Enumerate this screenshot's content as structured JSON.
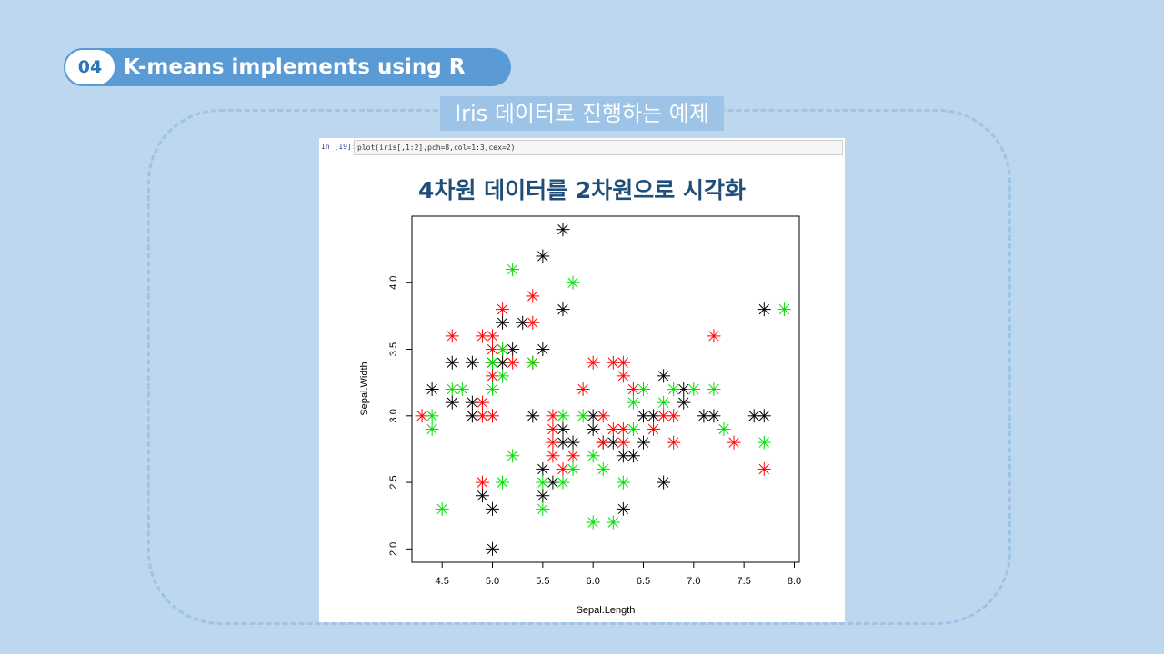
{
  "header": {
    "section_number": "04",
    "section_title": "K-means implements using R"
  },
  "subtitle": "Iris 데이터로 진행하는 예제",
  "notebook": {
    "prompt": "In [19]:",
    "code": "plot(iris[,1:2],pch=8,col=1:3,cex=2)"
  },
  "chart_data": {
    "type": "scatter",
    "title": "4차원 데이터를 2차원으로 시각화",
    "xlabel": "Sepal.Length",
    "ylabel": "Sepal.Width",
    "xlim": [
      4.2,
      8.05
    ],
    "ylim": [
      1.9,
      4.5
    ],
    "xticks": [
      4.5,
      5.0,
      5.5,
      6.0,
      6.5,
      7.0,
      7.5,
      8.0
    ],
    "yticks": [
      2.0,
      2.5,
      3.0,
      3.5,
      4.0
    ],
    "xtick_labels": [
      "4.5",
      "5.0",
      "5.5",
      "6.0",
      "6.5",
      "7.0",
      "7.5",
      "8.0"
    ],
    "ytick_labels": [
      "2.0",
      "2.5",
      "3.0",
      "3.5",
      "4.0"
    ],
    "marker": "asterisk",
    "series": [
      {
        "color": "#000000",
        "points": [
          [
            5.7,
            4.4
          ],
          [
            5.5,
            4.2
          ],
          [
            5.7,
            3.8
          ],
          [
            5.1,
            3.7
          ],
          [
            5.3,
            3.7
          ],
          [
            5.5,
            3.5
          ],
          [
            5.2,
            3.5
          ],
          [
            4.6,
            3.4
          ],
          [
            4.8,
            3.4
          ],
          [
            5.0,
            3.4
          ],
          [
            4.4,
            3.2
          ],
          [
            4.6,
            3.1
          ],
          [
            4.8,
            3.1
          ],
          [
            4.8,
            3.0
          ],
          [
            5.4,
            3.0
          ],
          [
            5.7,
            2.9
          ],
          [
            5.7,
            2.8
          ],
          [
            5.8,
            2.8
          ],
          [
            6.0,
            3.0
          ],
          [
            6.0,
            2.9
          ],
          [
            6.1,
            2.8
          ],
          [
            6.2,
            2.8
          ],
          [
            6.3,
            2.7
          ],
          [
            6.4,
            2.7
          ],
          [
            6.5,
            2.8
          ],
          [
            6.5,
            3.0
          ],
          [
            6.6,
            3.0
          ],
          [
            6.7,
            3.3
          ],
          [
            6.9,
            3.1
          ],
          [
            6.9,
            3.2
          ],
          [
            7.1,
            3.0
          ],
          [
            7.2,
            3.0
          ],
          [
            7.6,
            3.0
          ],
          [
            7.7,
            3.0
          ],
          [
            7.7,
            3.8
          ],
          [
            5.5,
            2.6
          ],
          [
            5.5,
            2.4
          ],
          [
            5.6,
            2.5
          ],
          [
            4.9,
            2.4
          ],
          [
            5.0,
            2.3
          ],
          [
            5.0,
            2.0
          ],
          [
            6.3,
            2.3
          ],
          [
            6.7,
            2.5
          ],
          [
            5.1,
            3.4
          ]
        ]
      },
      {
        "color": "#ff0000",
        "points": [
          [
            4.3,
            3.0
          ],
          [
            4.6,
            3.6
          ],
          [
            4.9,
            3.6
          ],
          [
            4.9,
            3.1
          ],
          [
            5.0,
            3.6
          ],
          [
            5.0,
            3.5
          ],
          [
            5.0,
            3.3
          ],
          [
            5.0,
            3.0
          ],
          [
            5.1,
            3.8
          ],
          [
            5.1,
            3.5
          ],
          [
            5.2,
            3.4
          ],
          [
            5.4,
            3.9
          ],
          [
            5.4,
            3.7
          ],
          [
            5.4,
            3.4
          ],
          [
            4.9,
            3.0
          ],
          [
            5.6,
            3.0
          ],
          [
            5.6,
            2.9
          ],
          [
            5.6,
            2.8
          ],
          [
            5.6,
            2.7
          ],
          [
            5.7,
            2.6
          ],
          [
            5.8,
            2.7
          ],
          [
            5.9,
            3.2
          ],
          [
            6.0,
            3.4
          ],
          [
            6.1,
            3.0
          ],
          [
            6.1,
            2.8
          ],
          [
            6.2,
            3.4
          ],
          [
            6.2,
            2.9
          ],
          [
            6.3,
            3.4
          ],
          [
            6.3,
            3.3
          ],
          [
            6.3,
            2.9
          ],
          [
            6.3,
            2.8
          ],
          [
            6.4,
            3.2
          ],
          [
            6.6,
            2.9
          ],
          [
            6.7,
            3.0
          ],
          [
            6.8,
            3.0
          ],
          [
            6.8,
            2.8
          ],
          [
            7.2,
            3.6
          ],
          [
            7.4,
            2.8
          ],
          [
            7.7,
            2.6
          ],
          [
            4.9,
            2.5
          ]
        ]
      },
      {
        "color": "#00dd00",
        "points": [
          [
            4.4,
            3.0
          ],
          [
            4.4,
            2.9
          ],
          [
            4.5,
            2.3
          ],
          [
            4.6,
            3.2
          ],
          [
            4.7,
            3.2
          ],
          [
            5.0,
            3.4
          ],
          [
            5.0,
            3.2
          ],
          [
            5.1,
            3.5
          ],
          [
            5.1,
            3.3
          ],
          [
            5.2,
            4.1
          ],
          [
            5.2,
            2.7
          ],
          [
            5.1,
            2.5
          ],
          [
            5.5,
            2.5
          ],
          [
            5.5,
            2.3
          ],
          [
            5.7,
            3.0
          ],
          [
            5.7,
            2.5
          ],
          [
            5.8,
            4.0
          ],
          [
            5.8,
            2.6
          ],
          [
            5.9,
            3.0
          ],
          [
            6.0,
            2.7
          ],
          [
            6.0,
            2.2
          ],
          [
            6.1,
            2.6
          ],
          [
            6.2,
            2.2
          ],
          [
            6.3,
            2.5
          ],
          [
            6.4,
            3.1
          ],
          [
            6.5,
            3.2
          ],
          [
            6.7,
            3.1
          ],
          [
            6.8,
            3.2
          ],
          [
            7.0,
            3.2
          ],
          [
            7.2,
            3.2
          ],
          [
            7.3,
            2.9
          ],
          [
            7.7,
            2.8
          ],
          [
            7.9,
            3.8
          ],
          [
            6.4,
            2.9
          ],
          [
            5.4,
            3.4
          ]
        ]
      }
    ]
  }
}
